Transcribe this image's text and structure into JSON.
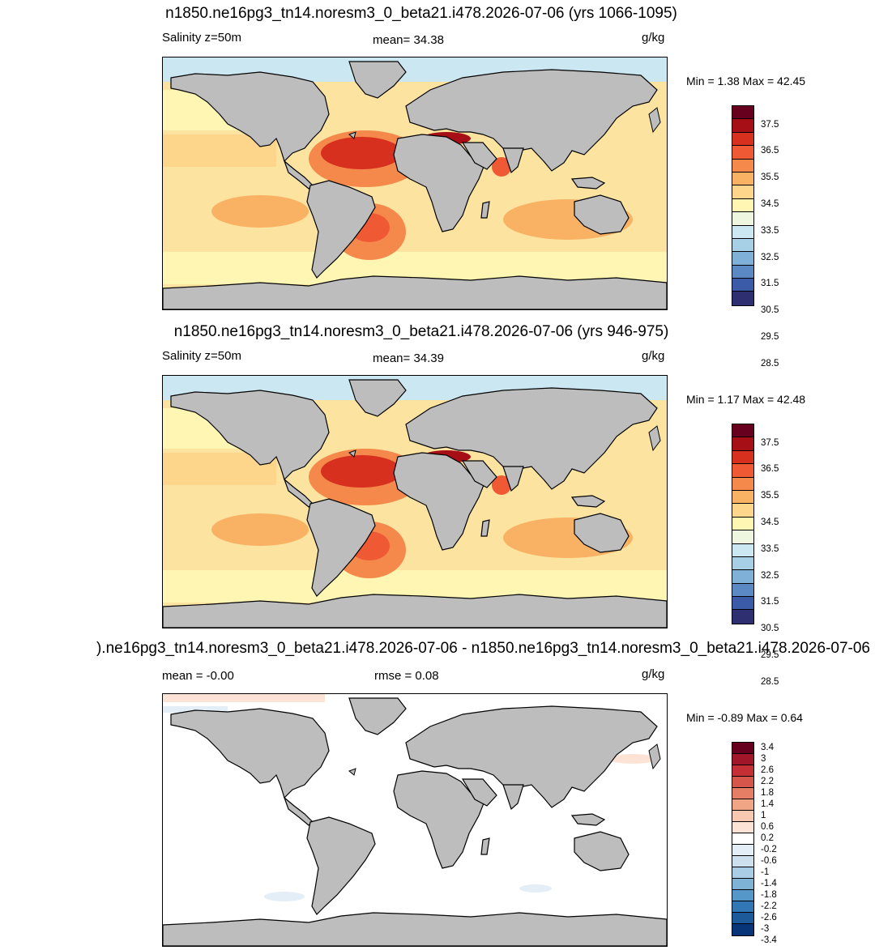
{
  "panels": [
    {
      "title": "n1850.ne16pg3_tn14.noresm3_0_beta21.i478.2026-07-06 (yrs 1066-1095)",
      "left_label": "Salinity z=50m",
      "center_label": "mean=  34.38",
      "units": "g/kg",
      "minmax": "Min =   1.38 Max =  42.45",
      "colorbar": {
        "colors": [
          "#67001f",
          "#a50f15",
          "#d7301f",
          "#ef5a35",
          "#f4894b",
          "#f9b264",
          "#fdd68c",
          "#fff6b4",
          "#eef6df",
          "#cbe7f1",
          "#a7d0e6",
          "#7fb0d8",
          "#5a89c4",
          "#3b5ba8",
          "#2d2f70"
        ],
        "labels": [
          "37.5",
          "36.5",
          "35.5",
          "34.5",
          "33.5",
          "32.5",
          "31.5",
          "30.5",
          "29.5",
          "28.5"
        ]
      }
    },
    {
      "title": "n1850.ne16pg3_tn14.noresm3_0_beta21.i478.2026-07-06 (yrs 946-975)",
      "left_label": "Salinity z=50m",
      "center_label": "mean=  34.39",
      "units": "g/kg",
      "minmax": "Min =   1.17 Max =  42.48",
      "colorbar": {
        "colors": [
          "#67001f",
          "#a50f15",
          "#d7301f",
          "#ef5a35",
          "#f4894b",
          "#f9b264",
          "#fdd68c",
          "#fff6b4",
          "#eef6df",
          "#cbe7f1",
          "#a7d0e6",
          "#7fb0d8",
          "#5a89c4",
          "#3b5ba8",
          "#2d2f70"
        ],
        "labels": [
          "37.5",
          "36.5",
          "35.5",
          "34.5",
          "33.5",
          "32.5",
          "31.5",
          "30.5",
          "29.5",
          "28.5"
        ]
      }
    },
    {
      "title": ").ne16pg3_tn14.noresm3_0_beta21.i478.2026-07-06 - n1850.ne16pg3_tn14.noresm3_0_beta21.i478.2026-07-06",
      "left_label": "mean =  -0.00",
      "center_label": "rmse =   0.08",
      "units": "g/kg",
      "minmax": "Min =  -0.89 Max =   0.64",
      "colorbar": {
        "colors": [
          "#67001f",
          "#a2162a",
          "#c43035",
          "#d6564c",
          "#e57e65",
          "#f0a585",
          "#f8c9b0",
          "#fde3d6",
          "#ffffff",
          "#e4eef6",
          "#cce0ee",
          "#a9cde4",
          "#7fb3d6",
          "#5597c8",
          "#3177b5",
          "#1c5a9a",
          "#083577"
        ],
        "labels": [
          "3.4",
          "3",
          "2.6",
          "2.2",
          "1.8",
          "1.4",
          "1",
          "0.6",
          "0.2",
          "-0.2",
          "-0.6",
          "-1",
          "-1.4",
          "-1.8",
          "-2.2",
          "-2.6",
          "-3",
          "-3.4"
        ]
      }
    }
  ]
}
